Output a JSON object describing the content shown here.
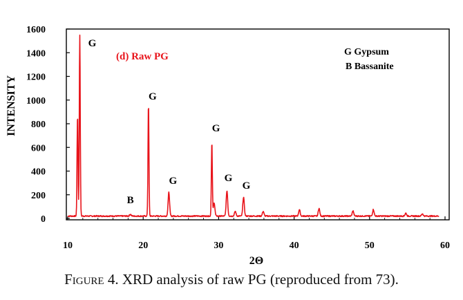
{
  "chart_data": {
    "type": "line",
    "panel_label": "(d) Raw PG",
    "xlabel": "2Θ",
    "ylabel": "INTENSITY",
    "xlim": [
      10,
      60
    ],
    "ylim": [
      0,
      1600
    ],
    "xticks": [
      10,
      20,
      30,
      40,
      50,
      60
    ],
    "yticks": [
      0,
      200,
      400,
      600,
      800,
      1000,
      1200,
      1400,
      1600
    ],
    "legend": [
      "G Gypsum",
      "B Bassanite"
    ],
    "legend_position": "top-right",
    "line_color": "#e8141b",
    "peaks": [
      {
        "x": 11.6,
        "y": 1545,
        "label": "G"
      },
      {
        "x": 18.3,
        "y": 30,
        "label": "B"
      },
      {
        "x": 20.7,
        "y": 965,
        "label": "G"
      },
      {
        "x": 23.4,
        "y": 215,
        "label": "G"
      },
      {
        "x": 29.1,
        "y": 640,
        "label": "G"
      },
      {
        "x": 31.1,
        "y": 230,
        "label": "G"
      },
      {
        "x": 33.3,
        "y": 175,
        "label": "G"
      }
    ],
    "minor_peaks": [
      {
        "x": 11.3,
        "y": 870
      },
      {
        "x": 29.4,
        "y": 130
      },
      {
        "x": 32.2,
        "y": 55
      },
      {
        "x": 35.9,
        "y": 55
      },
      {
        "x": 40.7,
        "y": 70
      },
      {
        "x": 43.3,
        "y": 80
      },
      {
        "x": 47.8,
        "y": 60
      },
      {
        "x": 50.5,
        "y": 70
      },
      {
        "x": 54.8,
        "y": 40
      },
      {
        "x": 57.0,
        "y": 35
      }
    ],
    "baseline": 15
  },
  "caption": {
    "figure_word": "Figure",
    "text": " 4. XRD analysis of raw PG (reproduced from 73)."
  }
}
